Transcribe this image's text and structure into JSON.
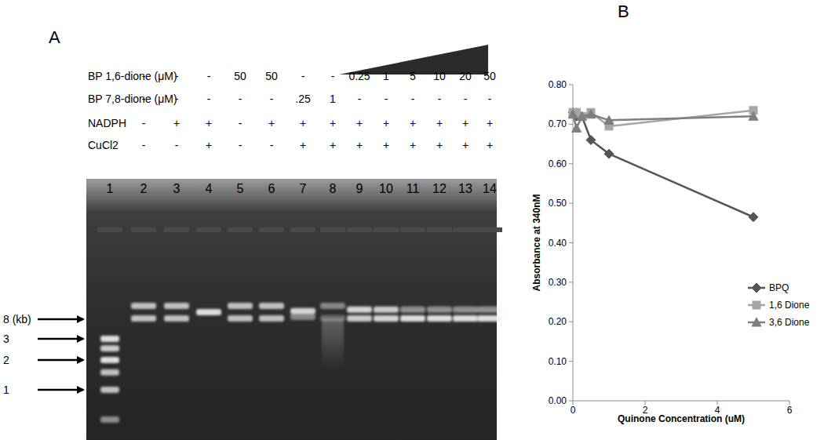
{
  "chart_data": {
    "type": "line",
    "panel_label": "B",
    "x_label": "Quinone Concentration (uM)",
    "y_label": "Absorbance at 340nM",
    "x": [
      0,
      0.1,
      0.25,
      0.5,
      1,
      5
    ],
    "series": [
      {
        "name": "BPQ",
        "color": "#555555",
        "marker": "diamond",
        "values": [
          0.73,
          0.72,
          0.72,
          0.66,
          0.625,
          0.465
        ]
      },
      {
        "name": "1,6 Dione",
        "color": "#a6a6a6",
        "marker": "square",
        "values": [
          0.73,
          0.73,
          0.72,
          0.73,
          0.695,
          0.735
        ]
      },
      {
        "name": "3,6 Dione",
        "color": "#7f7f7f",
        "marker": "triangle",
        "values": [
          0.725,
          0.69,
          0.72,
          0.725,
          0.71,
          0.72
        ]
      }
    ],
    "xlim": [
      0,
      6
    ],
    "xticks": [
      0,
      2,
      4,
      6
    ],
    "ylim": [
      0,
      0.8
    ],
    "yticks": [
      {
        "value": 0,
        "label": "0.00"
      },
      {
        "value": 0.1,
        "label": "0.10"
      },
      {
        "value": 0.2,
        "label": "0.20"
      },
      {
        "value": 0.3,
        "label": "0.30"
      },
      {
        "value": 0.4,
        "label": "0.40"
      },
      {
        "value": 0.5,
        "label": "0.50"
      },
      {
        "value": 0.6,
        "label": "0.60"
      },
      {
        "value": 0.7,
        "label": "0.70"
      },
      {
        "value": 0.8,
        "label": "0.80"
      }
    ],
    "grid": false,
    "legend": "right"
  },
  "figure_a": {
    "panel_label": "A",
    "row_labels": [
      "BP 1,6-dione (μM)",
      "BP 7,8-dione (μM)",
      "NADPH",
      "CuCl2"
    ],
    "ladder_markers": [
      {
        "value": 8,
        "label": "8 (kb)"
      },
      {
        "value": 3,
        "label": "3"
      },
      {
        "value": 2,
        "label": "2"
      },
      {
        "value": 1,
        "label": "1"
      }
    ],
    "lanes": [
      {
        "number": 1,
        "bands": [
          {
            "kb": 3,
            "intensity": 0.9
          },
          {
            "kb": 2.5,
            "intensity": 0.8
          },
          {
            "kb": 2,
            "intensity": 0.9
          },
          {
            "kb": 1.5,
            "intensity": 0.75
          },
          {
            "kb": 1,
            "intensity": 0.75
          },
          {
            "kb": 0.5,
            "intensity": 0.5
          }
        ]
      },
      {
        "number": 2,
        "cells": [
          "-",
          "-",
          "-",
          "-"
        ],
        "bands": [
          {
            "kb": 15.6,
            "intensity": 0.75
          },
          {
            "kb": 8.3,
            "intensity": 0.75
          }
        ]
      },
      {
        "number": 3,
        "cells": [
          "-",
          "-",
          "+",
          "-"
        ],
        "bands": [
          {
            "kb": 15.6,
            "intensity": 0.75
          },
          {
            "kb": 8.3,
            "intensity": 0.75
          }
        ]
      },
      {
        "number": 4,
        "cells": [
          "-",
          "-",
          "+",
          "+"
        ],
        "bands": [
          {
            "kb": 11.4,
            "intensity": 0.9
          }
        ]
      },
      {
        "number": 5,
        "cells": [
          "50",
          "-",
          "-",
          "-"
        ],
        "bands": [
          {
            "kb": 15.6,
            "intensity": 0.75
          },
          {
            "kb": 8.3,
            "intensity": 0.75
          }
        ]
      },
      {
        "number": 6,
        "cells": [
          "50",
          "-",
          "+",
          "-"
        ],
        "bands": [
          {
            "kb": 15.6,
            "intensity": 0.75
          },
          {
            "kb": 8.3,
            "intensity": 0.75
          }
        ]
      },
      {
        "number": 7,
        "cells": [
          "-",
          ".25",
          "+",
          "+"
        ],
        "bands": [
          {
            "kb": 12,
            "intensity": 0.85
          },
          {
            "kb": 9,
            "intensity": 0.45
          }
        ]
      },
      {
        "number": 8,
        "cells": [
          "-",
          "1",
          "+",
          "+"
        ],
        "bands": [
          {
            "kb": 15.6,
            "intensity": 0.45
          },
          {
            "kb": 8.5,
            "intensity": 0.3
          }
        ],
        "smear": {
          "from_kb": 8.3,
          "to_kb": 1.6,
          "intensity": 0.3
        }
      },
      {
        "number": 9,
        "cells": [
          "0.25",
          "-",
          "+",
          "+"
        ],
        "bands": [
          {
            "kb": 13,
            "intensity": 0.85
          },
          {
            "kb": 8.3,
            "intensity": 0.8
          }
        ]
      },
      {
        "number": 10,
        "cells": [
          "1",
          "-",
          "+",
          "+"
        ],
        "bands": [
          {
            "kb": 13,
            "intensity": 0.8
          },
          {
            "kb": 8.3,
            "intensity": 0.85
          }
        ]
      },
      {
        "number": 11,
        "cells": [
          "5",
          "-",
          "+",
          "+"
        ],
        "bands": [
          {
            "kb": 13,
            "intensity": 0.5
          },
          {
            "kb": 8.3,
            "intensity": 0.9
          }
        ]
      },
      {
        "number": 12,
        "cells": [
          "10",
          "-",
          "+",
          "+"
        ],
        "bands": [
          {
            "kb": 13,
            "intensity": 0.5
          },
          {
            "kb": 8.3,
            "intensity": 0.9
          }
        ]
      },
      {
        "number": 13,
        "cells": [
          "20",
          "-",
          "+",
          "+"
        ],
        "bands": [
          {
            "kb": 13,
            "intensity": 0.5
          },
          {
            "kb": 8.3,
            "intensity": 0.9
          }
        ]
      },
      {
        "number": 14,
        "cells": [
          "50",
          "-",
          "+",
          "+"
        ],
        "bands": [
          {
            "kb": 13,
            "intensity": 0.5
          },
          {
            "kb": 8.3,
            "intensity": 0.9
          }
        ]
      }
    ]
  }
}
